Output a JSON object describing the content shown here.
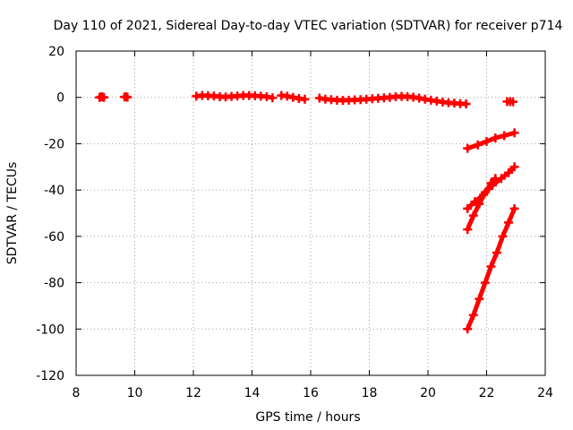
{
  "chart_data": {
    "type": "scatter",
    "title": "Day 110 of 2021, Sidereal Day-to-day VTEC variation (SDTVAR) for receiver p714",
    "xlabel": "GPS time / hours",
    "ylabel": "SDTVAR / TECUs",
    "xlim": [
      8,
      24
    ],
    "ylim": [
      -120,
      20
    ],
    "xticks": [
      8,
      10,
      12,
      14,
      16,
      18,
      20,
      22,
      24
    ],
    "yticks": [
      -120,
      -100,
      -80,
      -60,
      -40,
      -20,
      0,
      20
    ],
    "grid": true,
    "marker": "plus",
    "color": "#ff0000",
    "series": [
      {
        "x": [
          8.8,
          8.85,
          8.9,
          8.95
        ],
        "y": [
          0.0,
          0.3,
          0.2,
          0.0
        ]
      },
      {
        "x": [
          9.65,
          9.7,
          9.75
        ],
        "y": [
          0.2,
          0.3,
          0.1
        ]
      },
      {
        "x": [
          12.1,
          12.3,
          12.5,
          12.7,
          12.9,
          13.1,
          13.3,
          13.5,
          13.7,
          13.9,
          14.1,
          14.3,
          14.5,
          14.7
        ],
        "y": [
          0.5,
          0.8,
          0.7,
          0.6,
          0.3,
          0.2,
          0.4,
          0.6,
          0.8,
          0.8,
          0.7,
          0.5,
          0.3,
          -0.2
        ]
      },
      {
        "x": [
          15.0,
          15.2,
          15.4,
          15.6,
          15.8
        ],
        "y": [
          0.8,
          0.5,
          0.0,
          -0.5,
          -0.8
        ]
      },
      {
        "x": [
          16.3,
          16.5,
          16.7,
          16.9,
          17.1,
          17.3,
          17.5,
          17.7,
          17.9,
          18.1,
          18.3,
          18.5,
          18.7,
          18.9,
          19.1,
          19.3,
          19.5,
          19.7,
          19.9,
          20.1,
          20.3,
          20.5,
          20.7,
          20.9,
          21.1,
          21.3
        ],
        "y": [
          -0.3,
          -0.8,
          -1.0,
          -1.2,
          -1.3,
          -1.2,
          -1.1,
          -1.0,
          -0.8,
          -0.6,
          -0.4,
          -0.2,
          0.0,
          0.3,
          0.4,
          0.3,
          0.1,
          -0.3,
          -0.8,
          -1.2,
          -1.6,
          -2.0,
          -2.3,
          -2.5,
          -2.7,
          -2.8
        ]
      },
      {
        "x": [
          22.7,
          22.8,
          22.9
        ],
        "y": [
          -1.8,
          -1.8,
          -1.9
        ]
      },
      {
        "x": [
          21.35,
          21.7,
          22.0,
          22.3,
          22.6,
          22.95
        ],
        "y": [
          -22,
          -20.5,
          -19,
          -17.5,
          -16.5,
          -15.3
        ]
      },
      {
        "x": [
          21.35,
          21.6,
          21.9,
          22.2,
          22.5,
          22.75,
          22.95
        ],
        "y": [
          -48,
          -45,
          -42,
          -38,
          -35,
          -32.5,
          -30
        ]
      },
      {
        "x": [
          21.35,
          21.55,
          21.75,
          21.95,
          22.15,
          22.3
        ],
        "y": [
          -57,
          -51,
          -46,
          -41,
          -37,
          -35
        ]
      },
      {
        "x": [
          21.35,
          21.55,
          21.75,
          21.95,
          22.15,
          22.35,
          22.55,
          22.75,
          22.95
        ],
        "y": [
          -100,
          -94,
          -87,
          -80,
          -73,
          -67,
          -60,
          -54,
          -48
        ]
      }
    ]
  }
}
